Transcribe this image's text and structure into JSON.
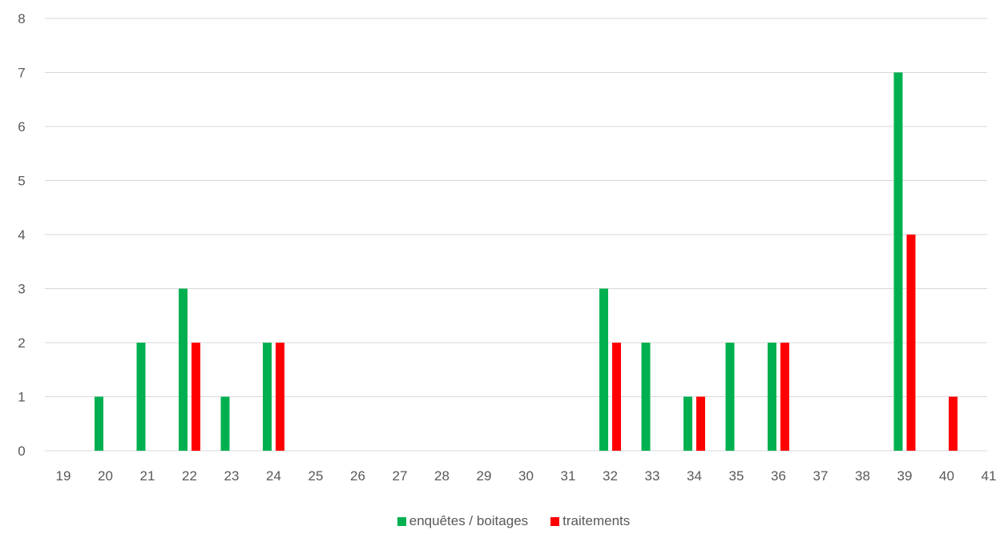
{
  "chart_data": {
    "type": "bar",
    "categories": [
      "19",
      "20",
      "21",
      "22",
      "23",
      "24",
      "25",
      "26",
      "27",
      "28",
      "29",
      "30",
      "31",
      "32",
      "33",
      "34",
      "35",
      "36",
      "37",
      "38",
      "39",
      "40",
      "41"
    ],
    "series": [
      {
        "name": "enquêtes  /  boitages",
        "color": "#00b050",
        "values": [
          0,
          1,
          2,
          3,
          1,
          2,
          0,
          0,
          0,
          0,
          0,
          0,
          0,
          3,
          2,
          1,
          2,
          2,
          0,
          0,
          7,
          0,
          0
        ]
      },
      {
        "name": "traitements",
        "color": "#ff0000",
        "values": [
          0,
          0,
          0,
          2,
          0,
          2,
          0,
          0,
          0,
          0,
          0,
          0,
          0,
          2,
          0,
          1,
          0,
          2,
          0,
          0,
          4,
          1,
          0
        ]
      }
    ],
    "yticks": [
      "0",
      "1",
      "2",
      "3",
      "4",
      "5",
      "6",
      "7",
      "8"
    ],
    "ylim": [
      0,
      8
    ],
    "grid": true,
    "legend_position": "bottom"
  }
}
